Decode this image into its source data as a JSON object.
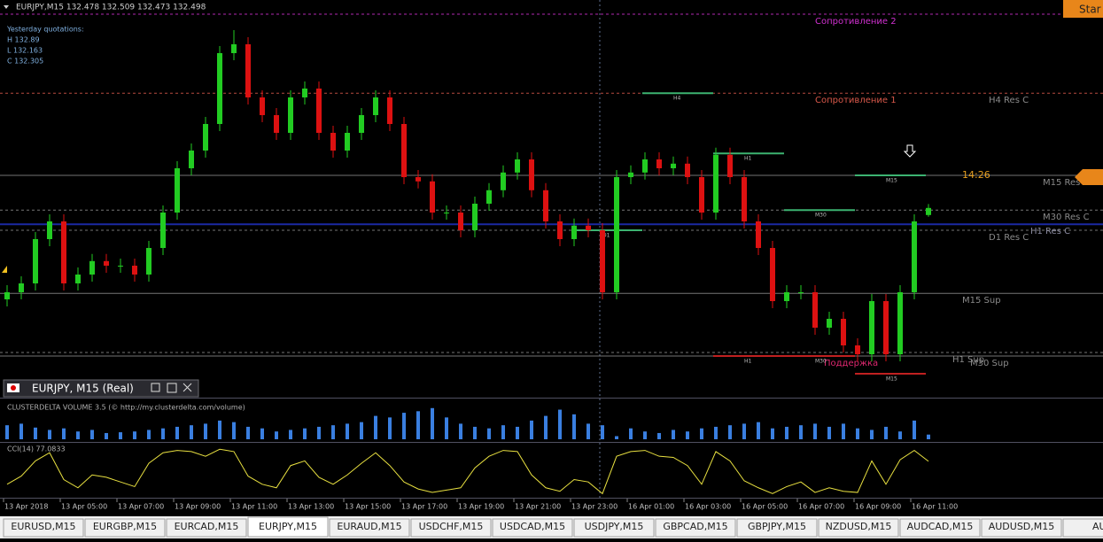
{
  "window": {
    "header": "EURJPY,M15  132.478 132.509 132.473 132.498",
    "subwindow_title": "EURJPY, M15 (Real)",
    "button": "Star",
    "countdown": "14:26",
    "yesterday": [
      "Yesterday quotations:",
      "H 132.89",
      "L 132.163",
      "C 132.305"
    ]
  },
  "chart_data": {
    "type": "candlestick",
    "up_color": "#22cc22",
    "down_color": "#dd1111",
    "ylim": [
      131.965,
      133.085
    ],
    "candles": [
      [
        132.24,
        132.28,
        132.22,
        132.26
      ],
      [
        132.26,
        132.305,
        132.24,
        132.285
      ],
      [
        132.285,
        132.43,
        132.265,
        132.41
      ],
      [
        132.41,
        132.48,
        132.39,
        132.46
      ],
      [
        132.46,
        132.48,
        132.265,
        132.285
      ],
      [
        132.285,
        132.33,
        132.265,
        132.31
      ],
      [
        132.31,
        132.368,
        132.29,
        132.348
      ],
      [
        132.348,
        132.368,
        132.315,
        132.335
      ],
      [
        132.335,
        132.355,
        132.315,
        132.335
      ],
      [
        132.335,
        132.355,
        132.29,
        132.31
      ],
      [
        132.31,
        132.405,
        132.29,
        132.385
      ],
      [
        132.385,
        132.505,
        132.365,
        132.485
      ],
      [
        132.485,
        132.63,
        132.465,
        132.61
      ],
      [
        132.61,
        132.68,
        132.59,
        132.66
      ],
      [
        132.66,
        132.755,
        132.64,
        132.735
      ],
      [
        132.735,
        132.955,
        132.715,
        132.935
      ],
      [
        132.935,
        133.0,
        132.915,
        132.96
      ],
      [
        132.96,
        132.98,
        132.79,
        132.81
      ],
      [
        132.81,
        132.83,
        132.74,
        132.76
      ],
      [
        132.76,
        132.78,
        132.69,
        132.71
      ],
      [
        132.71,
        132.83,
        132.69,
        132.81
      ],
      [
        132.81,
        132.855,
        132.79,
        132.835
      ],
      [
        132.835,
        132.855,
        132.69,
        132.71
      ],
      [
        132.71,
        132.73,
        132.64,
        132.66
      ],
      [
        132.66,
        132.73,
        132.64,
        132.71
      ],
      [
        132.71,
        132.78,
        132.69,
        132.76
      ],
      [
        132.76,
        132.83,
        132.74,
        132.81
      ],
      [
        132.81,
        132.83,
        132.715,
        132.735
      ],
      [
        132.735,
        132.755,
        132.565,
        132.585
      ],
      [
        132.585,
        132.605,
        132.553,
        132.573
      ],
      [
        132.573,
        132.593,
        132.465,
        132.485
      ],
      [
        132.485,
        132.505,
        132.465,
        132.485
      ],
      [
        132.485,
        132.505,
        132.415,
        132.435
      ],
      [
        132.435,
        132.53,
        132.415,
        132.51
      ],
      [
        132.51,
        132.568,
        132.49,
        132.548
      ],
      [
        132.548,
        132.618,
        132.528,
        132.598
      ],
      [
        132.598,
        132.655,
        132.578,
        132.635
      ],
      [
        132.635,
        132.655,
        132.528,
        132.548
      ],
      [
        132.548,
        132.568,
        132.44,
        132.46
      ],
      [
        132.46,
        132.48,
        132.39,
        132.41
      ],
      [
        132.41,
        132.468,
        132.39,
        132.448
      ],
      [
        132.448,
        132.468,
        132.415,
        132.435
      ],
      [
        132.435,
        132.455,
        132.24,
        132.26
      ],
      [
        132.26,
        132.605,
        132.24,
        132.585
      ],
      [
        132.585,
        132.618,
        132.565,
        132.598
      ],
      [
        132.598,
        132.655,
        132.578,
        132.635
      ],
      [
        132.635,
        132.655,
        132.59,
        132.61
      ],
      [
        132.61,
        132.643,
        132.59,
        132.623
      ],
      [
        132.623,
        132.643,
        132.565,
        132.585
      ],
      [
        132.585,
        132.605,
        132.465,
        132.485
      ],
      [
        132.485,
        132.668,
        132.465,
        132.648
      ],
      [
        132.648,
        132.668,
        132.565,
        132.585
      ],
      [
        132.585,
        132.605,
        132.44,
        132.46
      ],
      [
        132.46,
        132.48,
        132.365,
        132.385
      ],
      [
        132.385,
        132.405,
        132.215,
        132.235
      ],
      [
        132.235,
        132.28,
        132.215,
        132.26
      ],
      [
        132.26,
        132.28,
        132.24,
        132.26
      ],
      [
        132.26,
        132.28,
        132.14,
        132.16
      ],
      [
        132.16,
        132.205,
        132.14,
        132.185
      ],
      [
        132.185,
        132.205,
        132.09,
        132.11
      ],
      [
        132.11,
        132.13,
        132.065,
        132.085
      ],
      [
        132.085,
        132.255,
        132.065,
        132.235
      ],
      [
        132.235,
        132.255,
        132.065,
        132.085
      ],
      [
        132.085,
        132.28,
        132.065,
        132.26
      ],
      [
        132.26,
        132.48,
        132.24,
        132.46
      ],
      [
        132.478,
        132.509,
        132.473,
        132.498
      ]
    ],
    "levels": [
      {
        "label": "Сопротивление 2",
        "price": 133.045,
        "color": "#d030d0",
        "style": "dashed"
      },
      {
        "label": "Сопротивление 1",
        "price": 132.822,
        "color": "#d8584a",
        "style": "dashed"
      },
      {
        "label": "H4 Res C",
        "price": 132.822,
        "color": "#8a8a8a",
        "style": "none"
      },
      {
        "label": "M15 Res C",
        "price": 132.59,
        "color": "#8a8a8a",
        "style": "solid"
      },
      {
        "label": "M30 Res C",
        "price": 132.492,
        "color": "#8a8a8a",
        "style": "dashed"
      },
      {
        "label": "H1 Res C",
        "price": 132.452,
        "color": "#8a8aa0",
        "style": "blue"
      },
      {
        "label": "D1 Res C",
        "price": 132.435,
        "color": "#8a8a8a",
        "style": "dashed"
      },
      {
        "label": "M15 Sup",
        "price": 132.257,
        "color": "#8a8a8a",
        "style": "solid"
      },
      {
        "label": "H1 Sup",
        "price": 132.09,
        "color": "#8a8a8a",
        "style": "dashed"
      },
      {
        "label": "M30 Sup",
        "price": 132.08,
        "color": "#8a8a8a",
        "style": "solid"
      },
      {
        "label": "Поддержка",
        "price": 132.08,
        "color": "#e02870",
        "style": "none"
      }
    ],
    "mini_levels": [
      {
        "label": "H4",
        "price": 132.822,
        "color": "#3cb371"
      },
      {
        "label": "H1",
        "price": 132.652,
        "color": "#3cb371"
      },
      {
        "label": "M30",
        "price": 132.492,
        "color": "#3cb371"
      },
      {
        "label": "M15",
        "price": 132.59,
        "color": "#3cb371"
      },
      {
        "label": "D1",
        "price": 132.435,
        "color": "#3cb371"
      },
      {
        "label": "H1",
        "price": 132.08,
        "color": "#c02020"
      },
      {
        "label": "M30",
        "price": 132.08,
        "color": "#c02020"
      },
      {
        "label": "M15",
        "price": 132.03,
        "color": "#c02020"
      }
    ],
    "volume": {
      "title": "CLUSTERDELTA VOLUME 3.5 (© http://my.clusterdelta.com/volume)",
      "color": "#3a7fe0",
      "ylim": [
        0,
        50
      ],
      "values": [
        18,
        20,
        15,
        12,
        14,
        10,
        12,
        8,
        9,
        10,
        12,
        14,
        16,
        18,
        20,
        24,
        22,
        16,
        14,
        10,
        12,
        14,
        16,
        18,
        20,
        22,
        30,
        28,
        34,
        36,
        40,
        28,
        20,
        16,
        14,
        18,
        16,
        24,
        30,
        38,
        32,
        20,
        18,
        4,
        14,
        10,
        8,
        12,
        10,
        14,
        16,
        18,
        20,
        22,
        14,
        16,
        18,
        20,
        16,
        20,
        14,
        12,
        16,
        10,
        24,
        6
      ]
    },
    "cci": {
      "title": "CCI(14) 77.0833",
      "color": "#e8e040",
      "ylim": [
        -220,
        220
      ],
      "values": [
        -120,
        -50,
        80,
        150,
        -80,
        -150,
        -40,
        -60,
        -100,
        -140,
        60,
        150,
        170,
        160,
        120,
        180,
        160,
        -50,
        -120,
        -150,
        40,
        80,
        -60,
        -120,
        -40,
        60,
        150,
        40,
        -100,
        -160,
        -190,
        -170,
        -150,
        20,
        120,
        170,
        160,
        -40,
        -150,
        -180,
        -80,
        -100,
        -200,
        120,
        160,
        170,
        120,
        110,
        40,
        -120,
        160,
        80,
        -90,
        -150,
        -200,
        -140,
        -100,
        -190,
        -150,
        -180,
        -190,
        80,
        -120,
        90,
        170,
        77.0833
      ]
    },
    "time_labels": [
      "13 Apr 2018",
      "13 Apr 05:00",
      "13 Apr 07:00",
      "13 Apr 09:00",
      "13 Apr 11:00",
      "13 Apr 13:00",
      "13 Apr 15:00",
      "13 Apr 17:00",
      "13 Apr 19:00",
      "13 Apr 21:00",
      "13 Apr 23:00",
      "16 Apr 01:00",
      "16 Apr 03:00",
      "16 Apr 05:00",
      "16 Apr 07:00",
      "16 Apr 09:00",
      "16 Apr 11:00"
    ]
  },
  "tabs": {
    "items": [
      "EURUSD,M15",
      "EURGBP,M15",
      "EURCAD,M15",
      "EURJPY,M15",
      "EURAUD,M15",
      "USDCHF,M15",
      "USDCAD,M15",
      "USDJPY,M15",
      "GBPCAD,M15",
      "GBPJPY,M15",
      "NZDUSD,M15",
      "AUDCAD,M15",
      "AUDUSD,M15",
      "AUD"
    ],
    "active": 3
  }
}
